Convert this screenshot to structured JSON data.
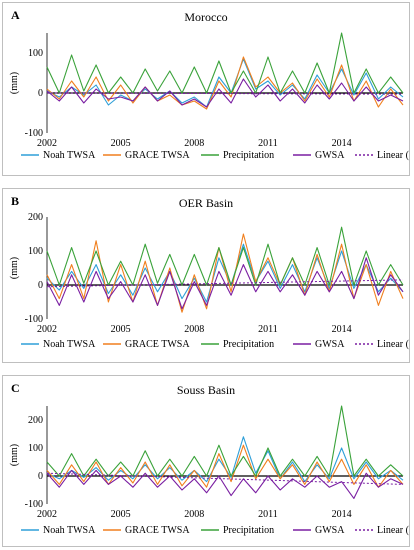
{
  "colors": {
    "noah": "#2e9fd8",
    "grace": "#f07f1e",
    "precip": "#3aa23a",
    "gwsa": "#7a1fa2",
    "trend": "#7a1fa2"
  },
  "chart_data": [
    {
      "type": "line",
      "panel_label": "A",
      "title": "Morocco",
      "ylabel": "(mm)",
      "ylim": [
        -100,
        150
      ],
      "yticks": [
        -100,
        0,
        100
      ],
      "xlim": [
        2002.0,
        2016.5
      ],
      "xtick_labels": [
        "2002",
        "2005",
        "2008",
        "2011",
        "2014"
      ],
      "legend_position": "bottom",
      "series": [
        {
          "name": "Noah TWSA",
          "key": "noah",
          "x": [
            2002,
            2002.5,
            2003,
            2003.5,
            2004,
            2004.5,
            2005,
            2005.5,
            2006,
            2006.5,
            2007,
            2007.5,
            2008,
            2008.5,
            2009,
            2009.5,
            2010,
            2010.5,
            2011,
            2011.5,
            2012,
            2012.5,
            2013,
            2013.5,
            2014,
            2014.5,
            2015,
            2015.5,
            2016,
            2016.5
          ],
          "values": [
            5,
            -10,
            15,
            -5,
            20,
            -30,
            -5,
            -20,
            10,
            -15,
            5,
            -25,
            -10,
            -35,
            40,
            0,
            85,
            10,
            30,
            -5,
            20,
            -15,
            45,
            0,
            60,
            -5,
            50,
            -15,
            15,
            -10
          ]
        },
        {
          "name": "GRACE TWSA",
          "key": "grace",
          "x": [
            2002,
            2002.5,
            2003,
            2003.5,
            2004,
            2004.5,
            2005,
            2005.5,
            2006,
            2006.5,
            2007,
            2007.5,
            2008,
            2008.5,
            2009,
            2009.5,
            2010,
            2010.5,
            2011,
            2011.5,
            2012,
            2012.5,
            2013,
            2013.5,
            2014,
            2014.5,
            2015,
            2015.5,
            2016,
            2016.5
          ],
          "values": [
            10,
            -15,
            30,
            -10,
            40,
            -20,
            20,
            -25,
            15,
            -20,
            -5,
            -30,
            -20,
            -40,
            30,
            -10,
            90,
            15,
            40,
            0,
            25,
            -20,
            35,
            -10,
            70,
            -20,
            30,
            -35,
            10,
            -30
          ]
        },
        {
          "name": "Precipitation",
          "key": "precip",
          "x": [
            2002,
            2002.5,
            2003,
            2003.5,
            2004,
            2004.5,
            2005,
            2005.5,
            2006,
            2006.5,
            2007,
            2007.5,
            2008,
            2008.5,
            2009,
            2009.5,
            2010,
            2010.5,
            2011,
            2011.5,
            2012,
            2012.5,
            2013,
            2013.5,
            2014,
            2014.5,
            2015,
            2015.5,
            2016,
            2016.5
          ],
          "values": [
            65,
            0,
            95,
            5,
            70,
            0,
            40,
            0,
            60,
            5,
            55,
            0,
            65,
            0,
            80,
            0,
            55,
            0,
            90,
            0,
            55,
            0,
            75,
            0,
            150,
            0,
            60,
            0,
            40,
            0
          ]
        },
        {
          "name": "GWSA",
          "key": "gwsa",
          "x": [
            2002,
            2002.5,
            2003,
            2003.5,
            2004,
            2004.5,
            2005,
            2005.5,
            2006,
            2006.5,
            2007,
            2007.5,
            2008,
            2008.5,
            2009,
            2009.5,
            2010,
            2010.5,
            2011,
            2011.5,
            2012,
            2012.5,
            2013,
            2013.5,
            2014,
            2014.5,
            2015,
            2015.5,
            2016,
            2016.5
          ],
          "values": [
            5,
            -20,
            15,
            -25,
            10,
            -15,
            -10,
            -20,
            15,
            -20,
            5,
            -30,
            -15,
            -35,
            10,
            -25,
            35,
            -10,
            20,
            -20,
            10,
            -25,
            20,
            -15,
            25,
            -20,
            15,
            -20,
            -5,
            -20
          ]
        },
        {
          "name": "Linear (GWSA)",
          "key": "trend",
          "dashed": true,
          "x": [
            2002,
            2016.5
          ],
          "values": [
            0,
            -3
          ]
        }
      ]
    },
    {
      "type": "line",
      "panel_label": "B",
      "title": "OER Basin",
      "ylabel": "(mm)",
      "ylim": [
        -100,
        200
      ],
      "yticks": [
        -100,
        0,
        100,
        200
      ],
      "xlim": [
        2002.0,
        2016.5
      ],
      "xtick_labels": [
        "2002",
        "2005",
        "2008",
        "2011",
        "2014"
      ],
      "legend_position": "bottom",
      "series": [
        {
          "name": "Noah TWSA",
          "key": "noah",
          "x": [
            2002,
            2002.5,
            2003,
            2003.5,
            2004,
            2004.5,
            2005,
            2005.5,
            2006,
            2006.5,
            2007,
            2007.5,
            2008,
            2008.5,
            2009,
            2009.5,
            2010,
            2010.5,
            2011,
            2011.5,
            2012,
            2012.5,
            2013,
            2013.5,
            2014,
            2014.5,
            2015,
            2015.5,
            2016,
            2016.5
          ],
          "values": [
            20,
            -15,
            40,
            -10,
            60,
            -25,
            30,
            -30,
            50,
            -20,
            40,
            -40,
            20,
            -50,
            80,
            0,
            120,
            10,
            70,
            -10,
            60,
            -20,
            80,
            -10,
            100,
            -10,
            60,
            -20,
            20,
            -20
          ]
        },
        {
          "name": "GRACE TWSA",
          "key": "grace",
          "x": [
            2002,
            2002.5,
            2003,
            2003.5,
            2004,
            2004.5,
            2005,
            2005.5,
            2006,
            2006.5,
            2007,
            2007.5,
            2008,
            2008.5,
            2009,
            2009.5,
            2010,
            2010.5,
            2011,
            2011.5,
            2012,
            2012.5,
            2013,
            2013.5,
            2014,
            2014.5,
            2015,
            2015.5,
            2016,
            2016.5
          ],
          "values": [
            30,
            -40,
            60,
            -40,
            130,
            -50,
            60,
            -50,
            70,
            -60,
            50,
            -80,
            30,
            -70,
            110,
            -20,
            150,
            10,
            80,
            0,
            80,
            -30,
            90,
            -20,
            120,
            -40,
            60,
            -60,
            40,
            -40
          ]
        },
        {
          "name": "Precipitation",
          "key": "precip",
          "x": [
            2002,
            2002.5,
            2003,
            2003.5,
            2004,
            2004.5,
            2005,
            2005.5,
            2006,
            2006.5,
            2007,
            2007.5,
            2008,
            2008.5,
            2009,
            2009.5,
            2010,
            2010.5,
            2011,
            2011.5,
            2012,
            2012.5,
            2013,
            2013.5,
            2014,
            2014.5,
            2015,
            2015.5,
            2016,
            2016.5
          ],
          "values": [
            100,
            0,
            110,
            5,
            100,
            0,
            70,
            0,
            120,
            5,
            90,
            0,
            90,
            0,
            110,
            0,
            110,
            0,
            120,
            0,
            80,
            0,
            110,
            0,
            170,
            0,
            100,
            0,
            60,
            0
          ]
        },
        {
          "name": "GWSA",
          "key": "gwsa",
          "x": [
            2002,
            2002.5,
            2003,
            2003.5,
            2004,
            2004.5,
            2005,
            2005.5,
            2006,
            2006.5,
            2007,
            2007.5,
            2008,
            2008.5,
            2009,
            2009.5,
            2010,
            2010.5,
            2011,
            2011.5,
            2012,
            2012.5,
            2013,
            2013.5,
            2014,
            2014.5,
            2015,
            2015.5,
            2016,
            2016.5
          ],
          "values": [
            10,
            -60,
            30,
            -50,
            40,
            -40,
            10,
            -50,
            30,
            -60,
            40,
            -70,
            10,
            -60,
            40,
            -30,
            60,
            -20,
            40,
            -20,
            30,
            -30,
            40,
            -20,
            40,
            -40,
            80,
            -30,
            30,
            -20
          ]
        },
        {
          "name": "Linear (GWSA)",
          "key": "trend",
          "dashed": true,
          "x": [
            2002,
            2016.5
          ],
          "values": [
            -5,
            15
          ]
        }
      ]
    },
    {
      "type": "line",
      "panel_label": "C",
      "title": "Souss Basin",
      "ylabel": "(mm)",
      "ylim": [
        -100,
        250
      ],
      "yticks": [
        -100,
        0,
        100,
        200
      ],
      "xlim": [
        2002.0,
        2016.5
      ],
      "xtick_labels": [
        "2002",
        "2005",
        "2008",
        "2011",
        "2014"
      ],
      "legend_position": "bottom",
      "series": [
        {
          "name": "Noah TWSA",
          "key": "noah",
          "x": [
            2002,
            2002.5,
            2003,
            2003.5,
            2004,
            2004.5,
            2005,
            2005.5,
            2006,
            2006.5,
            2007,
            2007.5,
            2008,
            2008.5,
            2009,
            2009.5,
            2010,
            2010.5,
            2011,
            2011.5,
            2012,
            2012.5,
            2013,
            2013.5,
            2014,
            2014.5,
            2015,
            2015.5,
            2016,
            2016.5
          ],
          "values": [
            10,
            -10,
            20,
            -5,
            30,
            -15,
            20,
            -10,
            40,
            -10,
            30,
            -15,
            20,
            -20,
            60,
            -5,
            140,
            10,
            90,
            -10,
            50,
            -20,
            40,
            -10,
            100,
            -10,
            50,
            -10,
            20,
            -15
          ]
        },
        {
          "name": "GRACE TWSA",
          "key": "grace",
          "x": [
            2002,
            2002.5,
            2003,
            2003.5,
            2004,
            2004.5,
            2005,
            2005.5,
            2006,
            2006.5,
            2007,
            2007.5,
            2008,
            2008.5,
            2009,
            2009.5,
            2010,
            2010.5,
            2011,
            2011.5,
            2012,
            2012.5,
            2013,
            2013.5,
            2014,
            2014.5,
            2015,
            2015.5,
            2016,
            2016.5
          ],
          "values": [
            20,
            -30,
            40,
            -20,
            50,
            -30,
            30,
            -25,
            50,
            -30,
            40,
            -35,
            20,
            -40,
            80,
            -20,
            110,
            -10,
            60,
            -10,
            40,
            -30,
            50,
            -20,
            60,
            -30,
            40,
            -40,
            20,
            -30
          ]
        },
        {
          "name": "Precipitation",
          "key": "precip",
          "x": [
            2002,
            2002.5,
            2003,
            2003.5,
            2004,
            2004.5,
            2005,
            2005.5,
            2006,
            2006.5,
            2007,
            2007.5,
            2008,
            2008.5,
            2009,
            2009.5,
            2010,
            2010.5,
            2011,
            2011.5,
            2012,
            2012.5,
            2013,
            2013.5,
            2014,
            2014.5,
            2015,
            2015.5,
            2016,
            2016.5
          ],
          "values": [
            50,
            0,
            80,
            0,
            60,
            0,
            50,
            0,
            90,
            0,
            60,
            0,
            70,
            0,
            110,
            0,
            70,
            0,
            100,
            0,
            60,
            0,
            70,
            0,
            250,
            0,
            60,
            0,
            40,
            0
          ]
        },
        {
          "name": "GWSA",
          "key": "gwsa",
          "x": [
            2002,
            2002.5,
            2003,
            2003.5,
            2004,
            2004.5,
            2005,
            2005.5,
            2006,
            2006.5,
            2007,
            2007.5,
            2008,
            2008.5,
            2009,
            2009.5,
            2010,
            2010.5,
            2011,
            2011.5,
            2012,
            2012.5,
            2013,
            2013.5,
            2014,
            2014.5,
            2015,
            2015.5,
            2016,
            2016.5
          ],
          "values": [
            10,
            -40,
            20,
            -30,
            20,
            -30,
            0,
            -40,
            10,
            -40,
            0,
            -50,
            -10,
            -60,
            0,
            -70,
            -10,
            -60,
            0,
            -50,
            -10,
            -40,
            0,
            -40,
            -20,
            -80,
            10,
            -40,
            -10,
            -30
          ]
        },
        {
          "name": "Linear (GWSA)",
          "key": "trend",
          "dashed": true,
          "x": [
            2002,
            2016.5
          ],
          "values": [
            10,
            -30
          ]
        }
      ]
    }
  ]
}
